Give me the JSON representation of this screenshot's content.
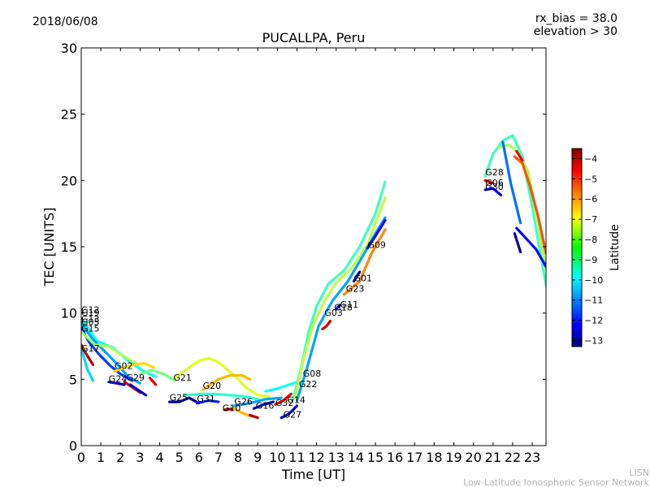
{
  "header": {
    "date": "2018/06/08",
    "rx_bias": "rx_bias = 38.0",
    "elevation": "elevation > 30"
  },
  "credit": {
    "line1": "LISN",
    "line2": "Low-Latitude Ionospheric Sensor Network"
  },
  "colorbar": {
    "label": "Latitude",
    "min": -13.3,
    "max": -3.5,
    "ticks": [
      "−4",
      "−5",
      "−6",
      "−7",
      "−8",
      "−9",
      "−10",
      "−11",
      "−12",
      "−13"
    ]
  },
  "chart_data": {
    "type": "scatter",
    "title": "PUCALLPA, Peru",
    "xlabel": "Time [UT]",
    "ylabel": "TEC [UNITS]",
    "xlim": [
      0,
      23.7
    ],
    "ylim": [
      0,
      30
    ],
    "xticks": [
      "0",
      "1",
      "2",
      "3",
      "4",
      "5",
      "6",
      "7",
      "8",
      "9",
      "10",
      "11",
      "12",
      "13",
      "14",
      "15",
      "16",
      "17",
      "18",
      "19",
      "20",
      "21",
      "22",
      "23"
    ],
    "yticks": [
      "0",
      "5",
      "10",
      "15",
      "20",
      "25",
      "30"
    ],
    "grid": false,
    "colormap": "jet",
    "color_variable": "Latitude",
    "labels": [
      {
        "text": "G12",
        "x": 0.0,
        "y": 10.0
      },
      {
        "text": "G19",
        "x": 0.0,
        "y": 9.8
      },
      {
        "text": "G13",
        "x": 0.0,
        "y": 9.3
      },
      {
        "text": "G05",
        "x": 0.0,
        "y": 9.1
      },
      {
        "text": "G15",
        "x": 0.0,
        "y": 8.6
      },
      {
        "text": "G17",
        "x": 0.0,
        "y": 7.1
      },
      {
        "text": "G02",
        "x": 1.7,
        "y": 5.8
      },
      {
        "text": "G24",
        "x": 1.4,
        "y": 4.8
      },
      {
        "text": "G29",
        "x": 2.3,
        "y": 4.9
      },
      {
        "text": "G21",
        "x": 4.7,
        "y": 4.9
      },
      {
        "text": "G20",
        "x": 6.2,
        "y": 4.3
      },
      {
        "text": "G25",
        "x": 4.5,
        "y": 3.4
      },
      {
        "text": "G31",
        "x": 5.9,
        "y": 3.3
      },
      {
        "text": "G26",
        "x": 7.8,
        "y": 3.1
      },
      {
        "text": "G10",
        "x": 7.2,
        "y": 2.6
      },
      {
        "text": "G16",
        "x": 8.9,
        "y": 2.8
      },
      {
        "text": "G32",
        "x": 9.9,
        "y": 3.0
      },
      {
        "text": "G14",
        "x": 10.5,
        "y": 3.2
      },
      {
        "text": "G27",
        "x": 10.3,
        "y": 2.1
      },
      {
        "text": "G08",
        "x": 11.3,
        "y": 5.2
      },
      {
        "text": "G22",
        "x": 11.1,
        "y": 4.4
      },
      {
        "text": "G03",
        "x": 12.4,
        "y": 9.8
      },
      {
        "text": "G18",
        "x": 12.9,
        "y": 10.2
      },
      {
        "text": "G11",
        "x": 13.2,
        "y": 10.4
      },
      {
        "text": "G23",
        "x": 13.5,
        "y": 11.6
      },
      {
        "text": "G01",
        "x": 13.9,
        "y": 12.4
      },
      {
        "text": "G09",
        "x": 14.6,
        "y": 14.9
      },
      {
        "text": "G28",
        "x": 20.6,
        "y": 20.4
      },
      {
        "text": "G06",
        "x": 20.6,
        "y": 19.6
      },
      {
        "text": "G30",
        "x": 20.6,
        "y": 19.3
      }
    ],
    "series": [
      {
        "name": "G12",
        "lat": -9.5,
        "x": [
          0,
          0.8,
          1.6,
          2.4,
          3.2,
          3.8
        ],
        "y": [
          9.6,
          7.9,
          7.4,
          6.4,
          5.6,
          5.2
        ]
      },
      {
        "name": "G19",
        "lat": -10.5,
        "x": [
          0,
          0.6,
          1.2,
          1.8,
          2.4,
          3.0
        ],
        "y": [
          9.2,
          8.0,
          7.1,
          6.2,
          5.2,
          4.7
        ]
      },
      {
        "name": "G13",
        "lat": -11.5,
        "x": [
          0,
          0.4,
          0.9,
          1.5,
          2.0,
          2.6
        ],
        "y": [
          8.9,
          7.8,
          6.9,
          6.0,
          5.4,
          4.9
        ]
      },
      {
        "name": "G05",
        "lat": -10.0,
        "x": [
          0,
          0.3,
          0.6
        ],
        "y": [
          7.4,
          5.8,
          4.9
        ]
      },
      {
        "name": "G15",
        "lat": -8.0,
        "x": [
          0,
          0.7,
          1.4,
          2.1,
          2.9
        ],
        "y": [
          8.6,
          7.6,
          7.5,
          6.8,
          6.1
        ]
      },
      {
        "name": "G17",
        "lat": -4.0,
        "x": [
          0,
          0.3,
          0.6
        ],
        "y": [
          7.6,
          6.8,
          6.1
        ]
      },
      {
        "name": "G02",
        "lat": -6.8,
        "x": [
          1.7,
          2.2,
          2.7,
          3.2,
          3.7
        ],
        "y": [
          5.6,
          5.9,
          6.1,
          6.2,
          5.9
        ]
      },
      {
        "name": "G24",
        "lat": -12.8,
        "x": [
          1.4,
          1.8,
          2.2
        ],
        "y": [
          4.8,
          4.7,
          4.6
        ]
      },
      {
        "name": "G29",
        "lat": -4.2,
        "x": [
          2.2,
          2.6,
          3.0
        ],
        "y": [
          4.8,
          4.4,
          4.0
        ]
      },
      {
        "name": "G29b",
        "lat": -12.6,
        "x": [
          2.5,
          2.9,
          3.3
        ],
        "y": [
          4.6,
          4.2,
          3.8
        ]
      },
      {
        "name": "G21a",
        "lat": -4.5,
        "x": [
          3.5,
          3.8
        ],
        "y": [
          5.1,
          4.6
        ]
      },
      {
        "name": "G21b",
        "lat": -8.5,
        "x": [
          3.0,
          3.6,
          4.2,
          4.8
        ],
        "y": [
          5.4,
          5.7,
          5.4,
          4.9
        ]
      },
      {
        "name": "G21",
        "lat": -7.5,
        "x": [
          4.8,
          5.4,
          6.0,
          6.5,
          7.0,
          7.8,
          8.4,
          9.0,
          9.6
        ],
        "y": [
          5.1,
          5.8,
          6.4,
          6.6,
          6.3,
          5.3,
          4.4,
          3.8,
          3.7
        ]
      },
      {
        "name": "G25",
        "lat": -12.9,
        "x": [
          4.5,
          5.0,
          5.5,
          6.0
        ],
        "y": [
          3.3,
          3.3,
          3.6,
          3.2
        ]
      },
      {
        "name": "G20",
        "lat": -6.5,
        "x": [
          6.2,
          7.0,
          7.6,
          8.2,
          8.6
        ],
        "y": [
          4.2,
          5.0,
          5.3,
          5.3,
          5.0
        ]
      },
      {
        "name": "G31",
        "lat": -11.8,
        "x": [
          5.9,
          6.5,
          7.0
        ],
        "y": [
          3.2,
          3.4,
          3.3
        ]
      },
      {
        "name": "G31b",
        "lat": -9.2,
        "x": [
          5.3,
          6.0,
          6.8,
          7.6,
          8.4,
          9.0
        ],
        "y": [
          3.8,
          3.9,
          3.9,
          3.8,
          3.7,
          3.5
        ]
      },
      {
        "name": "G26",
        "lat": -10.5,
        "x": [
          7.8,
          8.6,
          9.4,
          10.2
        ],
        "y": [
          3.0,
          3.2,
          3.5,
          3.6
        ]
      },
      {
        "name": "G10",
        "lat": -4.0,
        "x": [
          7.3,
          7.8
        ],
        "y": [
          2.7,
          2.8
        ]
      },
      {
        "name": "G10b",
        "lat": -6.5,
        "x": [
          7.8,
          8.3,
          8.7
        ],
        "y": [
          2.8,
          2.4,
          2.2
        ]
      },
      {
        "name": "G10c",
        "lat": -4.0,
        "x": [
          8.6,
          9.0
        ],
        "y": [
          2.3,
          2.1
        ]
      },
      {
        "name": "G16",
        "lat": -12.8,
        "x": [
          8.8,
          9.3,
          9.8
        ],
        "y": [
          2.8,
          3.1,
          3.3
        ]
      },
      {
        "name": "G32",
        "lat": -4.5,
        "x": [
          9.9,
          10.3,
          10.7
        ],
        "y": [
          3.1,
          3.4,
          3.9
        ]
      },
      {
        "name": "G14",
        "lat": -9.5,
        "x": [
          9.4,
          10.0,
          10.6,
          11.0
        ],
        "y": [
          4.1,
          4.3,
          4.6,
          4.8
        ]
      },
      {
        "name": "G27",
        "lat": -12.7,
        "x": [
          10.2,
          10.6,
          11.0
        ],
        "y": [
          2.1,
          2.4,
          3.0
        ]
      },
      {
        "name": "G08",
        "lat": -9.0,
        "x": [
          10.8,
          11.2,
          11.6,
          12.0,
          12.6,
          13.4,
          14.2,
          15.0,
          15.5
        ],
        "y": [
          3.5,
          5.8,
          8.6,
          10.5,
          12.2,
          13.2,
          15.0,
          17.5,
          19.9
        ]
      },
      {
        "name": "G22",
        "lat": -7.8,
        "x": [
          10.9,
          11.3,
          11.8,
          12.4,
          13.0,
          13.8,
          14.6,
          15.5
        ],
        "y": [
          3.6,
          6.3,
          9.0,
          10.9,
          12.3,
          13.4,
          15.2,
          18.7
        ]
      },
      {
        "name": "G11",
        "lat": -10.5,
        "x": [
          11.0,
          11.5,
          12.1,
          12.8,
          13.6,
          14.4,
          15.0,
          15.5
        ],
        "y": [
          3.4,
          5.8,
          9.0,
          10.9,
          12.4,
          14.4,
          16.0,
          17.2
        ]
      },
      {
        "name": "G03",
        "lat": -4.3,
        "x": [
          12.3,
          12.5,
          12.7
        ],
        "y": [
          8.8,
          9.0,
          9.4
        ]
      },
      {
        "name": "G18",
        "lat": -12.9,
        "x": [
          13.0,
          13.2
        ],
        "y": [
          10.3,
          10.6
        ]
      },
      {
        "name": "G23",
        "lat": -6.0,
        "x": [
          13.4,
          13.8,
          14.2,
          14.8,
          15.5
        ],
        "y": [
          11.4,
          11.9,
          12.4,
          14.5,
          16.3
        ]
      },
      {
        "name": "G01",
        "lat": -13.0,
        "x": [
          13.9,
          14.2
        ],
        "y": [
          12.4,
          13.1
        ]
      },
      {
        "name": "G09",
        "lat": -12.0,
        "x": [
          14.6,
          15.0,
          15.5
        ],
        "y": [
          14.9,
          15.8,
          17.0
        ]
      },
      {
        "name": "G28",
        "lat": -9.0,
        "x": [
          20.6,
          21.0,
          21.5,
          22.0,
          22.5,
          23.0,
          23.7
        ],
        "y": [
          20.3,
          22.0,
          23.0,
          23.4,
          21.8,
          18.0,
          12.1
        ]
      },
      {
        "name": "G28b",
        "lat": -8.0,
        "x": [
          21.3,
          21.8,
          22.3,
          22.8,
          23.3,
          23.7
        ],
        "y": [
          22.5,
          22.7,
          22.1,
          20.6,
          16.8,
          13.3
        ]
      },
      {
        "name": "G06",
        "lat": -5.5,
        "x": [
          22.1,
          22.5,
          22.9,
          23.3,
          23.7
        ],
        "y": [
          21.8,
          21.3,
          19.5,
          17.3,
          14.5
        ]
      },
      {
        "name": "G06b",
        "lat": -4.3,
        "x": [
          20.6,
          21.0
        ],
        "y": [
          20.0,
          19.8
        ]
      },
      {
        "name": "G30",
        "lat": -12.3,
        "x": [
          20.6,
          21.0,
          21.4
        ],
        "y": [
          19.3,
          19.4,
          18.9
        ]
      },
      {
        "name": "G30b",
        "lat": -11.0,
        "x": [
          21.5,
          21.9,
          22.4
        ],
        "y": [
          22.9,
          19.8,
          16.8
        ]
      },
      {
        "name": "G30c",
        "lat": -12.0,
        "x": [
          22.2,
          22.7,
          23.2,
          23.7
        ],
        "y": [
          16.4,
          15.6,
          14.8,
          13.5
        ]
      },
      {
        "name": "G30d",
        "lat": -4.5,
        "x": [
          22.2,
          22.5
        ],
        "y": [
          22.2,
          21.5
        ]
      },
      {
        "name": "G30e",
        "lat": -12.9,
        "x": [
          22.1,
          22.4
        ],
        "y": [
          16.0,
          14.6
        ]
      }
    ]
  }
}
